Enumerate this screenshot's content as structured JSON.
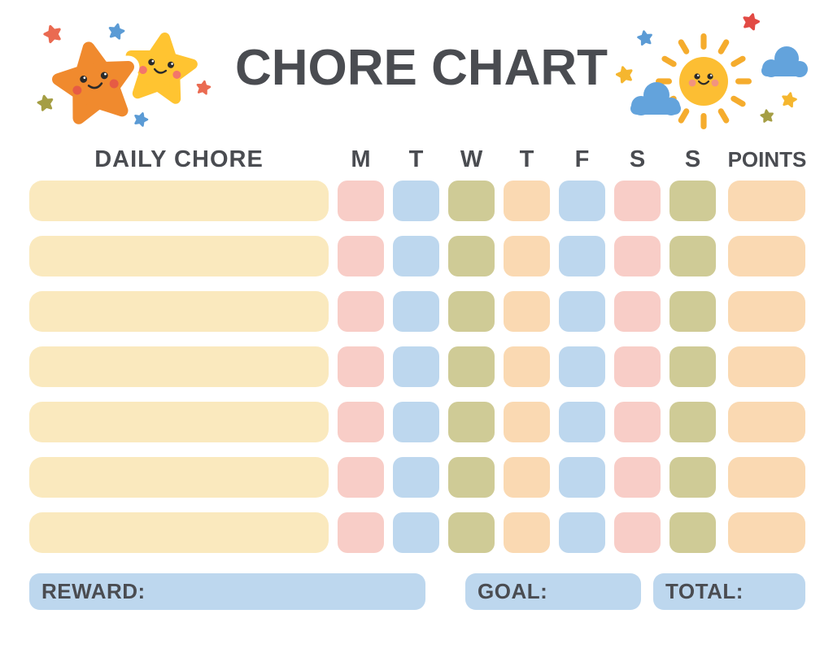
{
  "title": "CHORE CHART",
  "header": {
    "chore_column": "DAILY CHORE",
    "days": [
      "M",
      "T",
      "W",
      "T",
      "F",
      "S",
      "S"
    ],
    "points_column": "POINTS"
  },
  "grid": {
    "row_count": 7,
    "chore_cell_color": "cream",
    "day_cell_colors": [
      "pink",
      "blue",
      "olive",
      "peach",
      "blue",
      "pink",
      "olive"
    ],
    "points_cell_color": "peach"
  },
  "footer": {
    "reward_label": "REWARD:",
    "goal_label": "GOAL:",
    "total_label": "TOTAL:"
  },
  "colors": {
    "text": "#4A4C51",
    "cream": "#FAE9BE",
    "pink": "#F8CDC7",
    "blue": "#BDD7EE",
    "olive": "#CFCB96",
    "peach": "#FAD9B2",
    "footer_box": "#BDD7EE",
    "star_orange": "#F08A2E",
    "star_yellow": "#FFC431",
    "sun_yellow": "#FCBE33",
    "sun_ray": "#F5AC2D",
    "cloud_blue": "#63A3DC",
    "sparkle_red": "#EA6A51",
    "sparkle_blue": "#5B9BD5",
    "sparkle_olive": "#A59E44",
    "sparkle_yellow": "#F5B62F"
  },
  "decorations": {
    "left_icon": "smiling-stars",
    "right_icon": "smiling-sun-with-clouds"
  }
}
